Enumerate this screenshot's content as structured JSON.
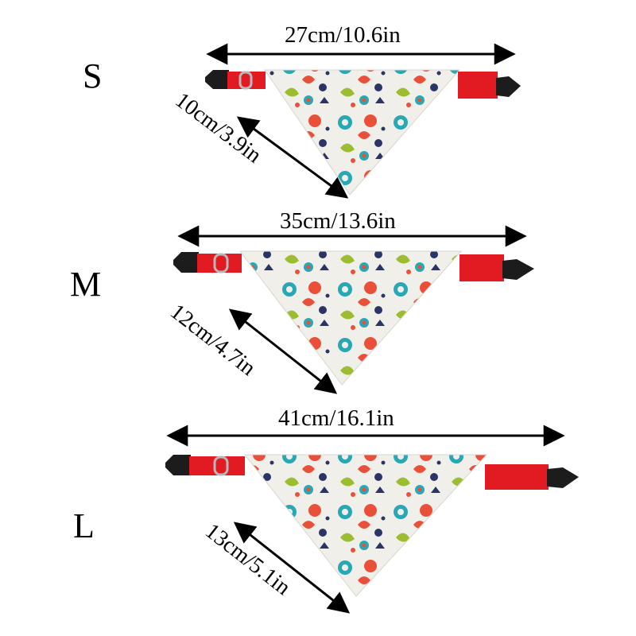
{
  "sizes": [
    {
      "size": "S",
      "width_label": "27cm/10.6in",
      "depth_label": "10cm/3.9in"
    },
    {
      "size": "M",
      "width_label": "35cm/13.6in",
      "depth_label": "12cm/4.7in"
    },
    {
      "size": "L",
      "width_label": "41cm/16.1in",
      "depth_label": "13cm/5.1in"
    }
  ],
  "colors": {
    "collar": "#e21b23",
    "buckle": "#1c1c1c",
    "fabric": "#f1efea",
    "pattern_teal": "#28a8b4",
    "pattern_red": "#ea4f3a",
    "pattern_navy": "#2a3566",
    "pattern_green": "#9cbd32"
  }
}
